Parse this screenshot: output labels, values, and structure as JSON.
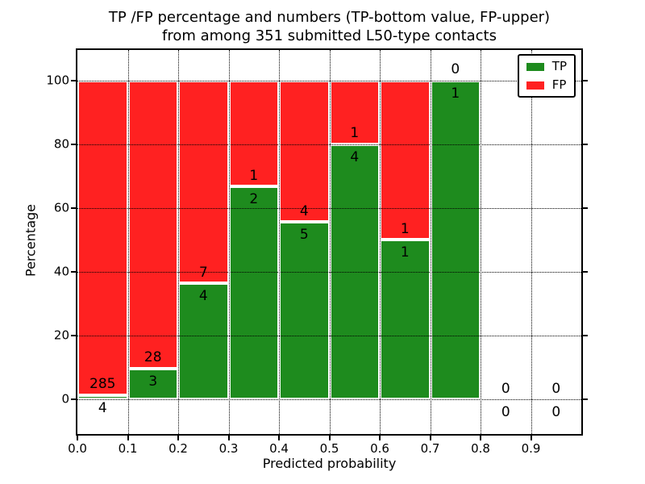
{
  "figure": {
    "title_line1": "TP /FP percentage and numbers (TP-bottom value, FP-upper)",
    "title_line2": "from among 351 submitted L50-type contacts"
  },
  "chart_data": {
    "type": "bar",
    "stacked": true,
    "title": "TP /FP percentage and numbers (TP-bottom value, FP-upper) from among 351 submitted L50-type contacts",
    "xlabel": "Predicted probability",
    "ylabel": "Percentage",
    "xlim": [
      0.0,
      1.0
    ],
    "ylim": [
      -10.8,
      109.5
    ],
    "grid": true,
    "xtick_values": [
      0.0,
      0.1,
      0.2,
      0.3,
      0.4,
      0.5,
      0.6,
      0.7,
      0.8,
      0.9
    ],
    "xtick_labels": [
      "0.0",
      "0.1",
      "0.2",
      "0.3",
      "0.4",
      "0.5",
      "0.6",
      "0.7",
      "0.8",
      "0.9"
    ],
    "ytick_values": [
      0,
      20,
      40,
      60,
      80,
      100
    ],
    "ytick_labels": [
      "0",
      "20",
      "40",
      "60",
      "80",
      "100"
    ],
    "colors": {
      "tp": "#1e8b1e",
      "fp": "#ff2121"
    },
    "legend": {
      "position": "upper right",
      "items": [
        {
          "label": "TP",
          "color": "#1e8b1e"
        },
        {
          "label": "FP",
          "color": "#ff2121"
        }
      ]
    },
    "bins": [
      {
        "x_range": [
          0.0,
          0.1
        ],
        "tp_count": 4,
        "fp_count": 285,
        "tp_pct": 1.38,
        "fp_pct": 98.62
      },
      {
        "x_range": [
          0.1,
          0.2
        ],
        "tp_count": 3,
        "fp_count": 28,
        "tp_pct": 9.68,
        "fp_pct": 90.32
      },
      {
        "x_range": [
          0.2,
          0.3
        ],
        "tp_count": 4,
        "fp_count": 7,
        "tp_pct": 36.36,
        "fp_pct": 63.64
      },
      {
        "x_range": [
          0.3,
          0.4
        ],
        "tp_count": 2,
        "fp_count": 1,
        "tp_pct": 66.67,
        "fp_pct": 33.33
      },
      {
        "x_range": [
          0.4,
          0.5
        ],
        "tp_count": 5,
        "fp_count": 4,
        "tp_pct": 55.56,
        "fp_pct": 44.44
      },
      {
        "x_range": [
          0.5,
          0.6
        ],
        "tp_count": 4,
        "fp_count": 1,
        "tp_pct": 80.0,
        "fp_pct": 20.0
      },
      {
        "x_range": [
          0.6,
          0.7
        ],
        "tp_count": 1,
        "fp_count": 1,
        "tp_pct": 50.0,
        "fp_pct": 50.0
      },
      {
        "x_range": [
          0.7,
          0.8
        ],
        "tp_count": 1,
        "fp_count": 0,
        "tp_pct": 100.0,
        "fp_pct": 0.0
      },
      {
        "x_range": [
          0.8,
          0.9
        ],
        "tp_count": 0,
        "fp_count": 0,
        "tp_pct": 0.0,
        "fp_pct": 0.0
      },
      {
        "x_range": [
          0.9,
          1.0
        ],
        "tp_count": 0,
        "fp_count": 0,
        "tp_pct": 0.0,
        "fp_pct": 0.0
      }
    ]
  }
}
